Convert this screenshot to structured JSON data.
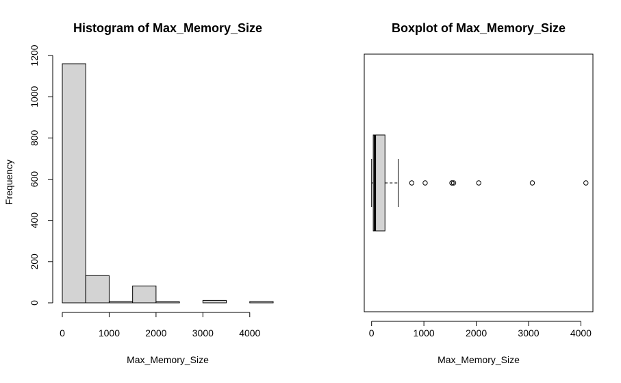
{
  "chart_data": [
    {
      "type": "histogram",
      "title": "Histogram of Max_Memory_Size",
      "xlabel": "Max_Memory_Size",
      "ylabel": "Frequency",
      "bins": [
        {
          "start": 0,
          "end": 500,
          "count": 1160
        },
        {
          "start": 500,
          "end": 1000,
          "count": 132
        },
        {
          "start": 1000,
          "end": 1500,
          "count": 6
        },
        {
          "start": 1500,
          "end": 2000,
          "count": 82
        },
        {
          "start": 2000,
          "end": 2500,
          "count": 5
        },
        {
          "start": 2500,
          "end": 3000,
          "count": 0
        },
        {
          "start": 3000,
          "end": 3500,
          "count": 12
        },
        {
          "start": 3500,
          "end": 4000,
          "count": 0
        },
        {
          "start": 4000,
          "end": 4500,
          "count": 6
        }
      ],
      "xticks": [
        0,
        1000,
        2000,
        3000,
        4000
      ],
      "yticks": [
        0,
        200,
        400,
        600,
        800,
        1000,
        1200
      ],
      "xlim": [
        0,
        4500
      ],
      "ylim": [
        0,
        1200
      ],
      "bar_color": "#d3d3d3"
    },
    {
      "type": "boxplot",
      "title": "Boxplot of Max_Memory_Size",
      "xlabel": "Max_Memory_Size",
      "orientation": "horizontal",
      "whisker_low": 0,
      "q1": 32,
      "median": 64,
      "q3": 256,
      "whisker_high": 512,
      "outliers": [
        768,
        1024,
        1536,
        1536,
        1568,
        2048,
        3072,
        4096
      ],
      "xticks": [
        0,
        1000,
        2000,
        3000,
        4000
      ],
      "xlim": [
        -140,
        4230
      ],
      "box_color": "#d3d3d3"
    }
  ]
}
